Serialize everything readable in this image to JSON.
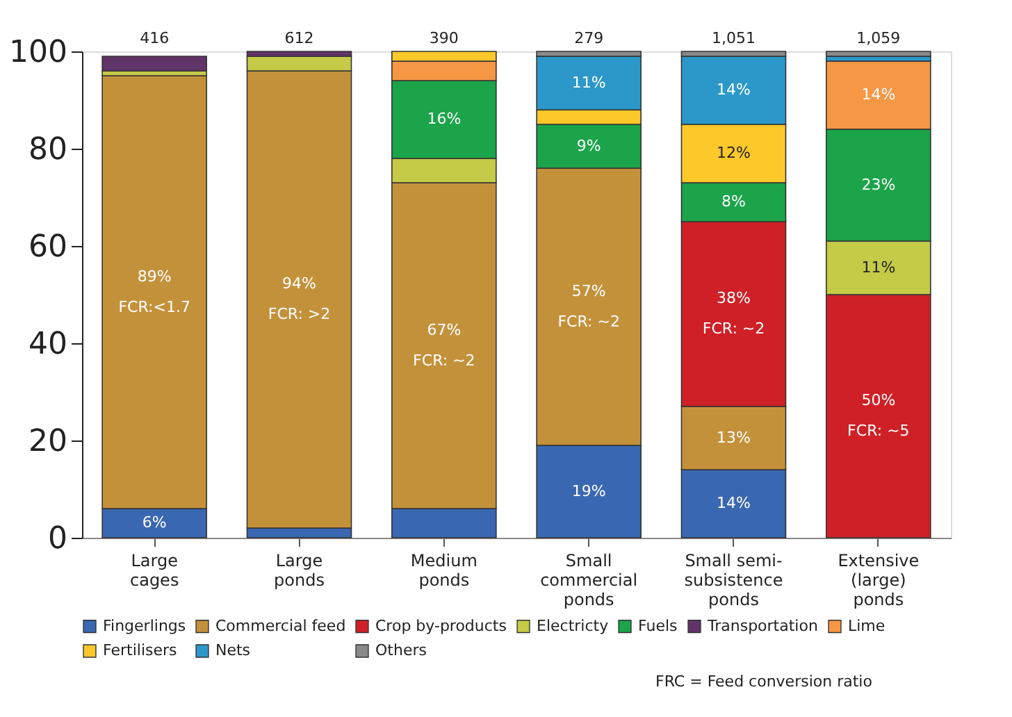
{
  "chart_data": {
    "type": "bar",
    "stacked": true,
    "categories": [
      "Large\ncages",
      "Large\nponds",
      "Medium\nponds",
      "Small\ncommercial\nponds",
      "Small semi-\nsubsistence\nponds",
      "Extensive\n(large)\nponds"
    ],
    "series": [
      {
        "name": "Fingerlings",
        "color": "#3a67b1",
        "values": [
          6,
          2,
          6,
          19,
          14,
          0
        ],
        "value_labels": [
          "6%",
          null,
          null,
          "19%",
          "14%",
          null
        ]
      },
      {
        "name": "Commercial feed",
        "color": "#c4913b",
        "values": [
          89,
          94,
          67,
          57,
          13,
          0
        ],
        "value_labels": [
          "89%",
          "94%",
          "67%",
          "57%",
          "13%",
          null
        ]
      },
      {
        "name": "Crop by-products",
        "color": "#cf2027",
        "values": [
          0,
          0,
          0,
          0,
          38,
          50
        ],
        "value_labels": [
          null,
          null,
          null,
          null,
          "38%",
          "50%"
        ]
      },
      {
        "name": "Electricty",
        "color": "#c5ca47",
        "values": [
          1,
          3,
          5,
          0,
          0,
          11
        ],
        "value_labels": [
          null,
          null,
          null,
          null,
          null,
          "11%"
        ]
      },
      {
        "name": "Fuels",
        "color": "#1ba449",
        "values": [
          0,
          0,
          16,
          9,
          8,
          23
        ],
        "value_labels": [
          null,
          null,
          "16%",
          "9%",
          "8%",
          "23%"
        ]
      },
      {
        "name": "Transportation",
        "color": "#613469",
        "values": [
          3,
          1,
          0,
          0,
          0,
          0
        ]
      },
      {
        "name": "Lime",
        "color": "#f59745",
        "values": [
          0,
          0,
          4,
          0,
          0,
          14
        ],
        "value_labels": [
          null,
          null,
          null,
          null,
          null,
          "14%"
        ]
      },
      {
        "name": "Fertilisers",
        "color": "#fdc82a",
        "values": [
          0,
          0,
          2,
          3,
          12,
          0
        ],
        "value_labels": [
          null,
          null,
          null,
          null,
          "12%",
          null
        ]
      },
      {
        "name": "Nets",
        "color": "#2b98c9",
        "values": [
          0,
          0,
          0,
          11,
          14,
          1
        ],
        "value_labels": [
          null,
          null,
          null,
          "11%",
          "14%",
          null
        ]
      },
      {
        "name": "Others",
        "color": "#8a8a8a",
        "values": [
          0,
          0,
          0,
          1,
          1,
          1
        ]
      }
    ],
    "ylim": [
      0,
      100
    ],
    "yticks": [
      0,
      20,
      40,
      60,
      80,
      100
    ],
    "grid": false,
    "legend": "bottom",
    "annotations": [
      "416",
      "612",
      "390",
      "279",
      "1,051",
      "1,059",
      "FCR:<1.7",
      "FCR: >2",
      "FCR: ~2",
      "FCR: ~2",
      "FCR: ~2",
      "FCR: ~5",
      "FRC = Feed conversion ratio"
    ]
  }
}
